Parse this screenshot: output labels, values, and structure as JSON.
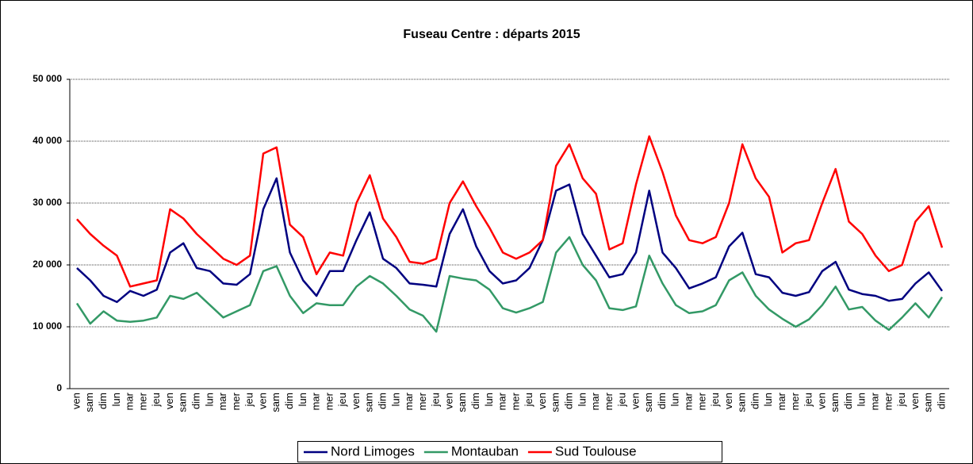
{
  "chart_data": {
    "type": "line",
    "title": "Fuseau Centre : départs 2015",
    "categories": [
      "ven",
      "sam",
      "dim",
      "lun",
      "mar",
      "mer",
      "jeu",
      "ven",
      "sam",
      "dim",
      "lun",
      "mar",
      "mer",
      "jeu",
      "ven",
      "sam",
      "dim",
      "lun",
      "mar",
      "mer",
      "jeu",
      "ven",
      "sam",
      "dim",
      "lun",
      "mar",
      "mer",
      "jeu",
      "ven",
      "sam",
      "dim",
      "lun",
      "mar",
      "mer",
      "jeu",
      "ven",
      "sam",
      "dim",
      "lun",
      "mar",
      "mer",
      "jeu",
      "ven",
      "sam",
      "dim",
      "lun",
      "mar",
      "mer",
      "jeu",
      "ven",
      "sam",
      "dim",
      "lun",
      "mar",
      "mer",
      "jeu",
      "ven",
      "sam",
      "dim",
      "lun",
      "mar",
      "mer",
      "jeu",
      "ven",
      "sam",
      "dim"
    ],
    "series": [
      {
        "name": "Nord Limoges",
        "color": "#000080",
        "values": [
          19500,
          17500,
          15000,
          14000,
          15800,
          15000,
          16000,
          22000,
          23500,
          19500,
          19000,
          17000,
          16800,
          18500,
          29000,
          34000,
          22000,
          17500,
          15000,
          19000,
          19000,
          24000,
          28500,
          21000,
          19500,
          17000,
          16800,
          16500,
          25000,
          29000,
          23000,
          19000,
          17000,
          17500,
          19500,
          24000,
          32000,
          33000,
          25000,
          21500,
          18000,
          18500,
          22000,
          32000,
          22000,
          19500,
          16200,
          17000,
          18000,
          23000,
          25200,
          18500,
          18000,
          15500,
          15000,
          15600,
          19000,
          20500,
          16000,
          15300,
          15000,
          14200,
          14500,
          17000,
          18800,
          15800
        ]
      },
      {
        "name": "Montauban",
        "color": "#339966",
        "values": [
          13800,
          10500,
          12500,
          11000,
          10800,
          11000,
          11500,
          15000,
          14500,
          15500,
          13500,
          11500,
          12500,
          13500,
          19000,
          19800,
          15000,
          12200,
          13800,
          13500,
          13500,
          16500,
          18200,
          17000,
          15000,
          12800,
          11800,
          9200,
          18200,
          17800,
          17500,
          16000,
          13000,
          12300,
          13000,
          14000,
          22000,
          24500,
          20000,
          17500,
          13000,
          12700,
          13300,
          21500,
          17000,
          13500,
          12200,
          12500,
          13500,
          17500,
          18800,
          15000,
          12800,
          11300,
          10000,
          11200,
          13500,
          16500,
          12800,
          13200,
          11000,
          9500,
          11500,
          13800,
          11500,
          14800
        ]
      },
      {
        "name": "Sud Toulouse",
        "color": "#ff0000",
        "values": [
          27400,
          25000,
          23100,
          21500,
          16500,
          17000,
          17500,
          29000,
          27500,
          25000,
          23000,
          21000,
          20000,
          21500,
          38000,
          39000,
          26500,
          24500,
          18500,
          22000,
          21500,
          30000,
          34500,
          27500,
          24500,
          20500,
          20200,
          21000,
          30000,
          33500,
          29500,
          26000,
          22000,
          21000,
          22000,
          24000,
          36000,
          39500,
          34000,
          31500,
          22500,
          23500,
          33000,
          40800,
          35000,
          28000,
          24000,
          23500,
          24500,
          30000,
          39500,
          34000,
          31000,
          22000,
          23500,
          24000,
          30000,
          35500,
          27000,
          25000,
          21500,
          19000,
          20000,
          27000,
          29500,
          22800
        ]
      }
    ],
    "ylim": [
      0,
      50000
    ],
    "yticks": [
      0,
      {
        "value": 10000,
        "label": "10 000"
      },
      {
        "value": 20000,
        "label": "20 000"
      },
      {
        "value": 30000,
        "label": "30 000"
      },
      {
        "value": 40000,
        "label": "40 000"
      },
      {
        "value": 50000,
        "label": "50 000"
      }
    ],
    "grid": true,
    "legend": "bottom"
  }
}
